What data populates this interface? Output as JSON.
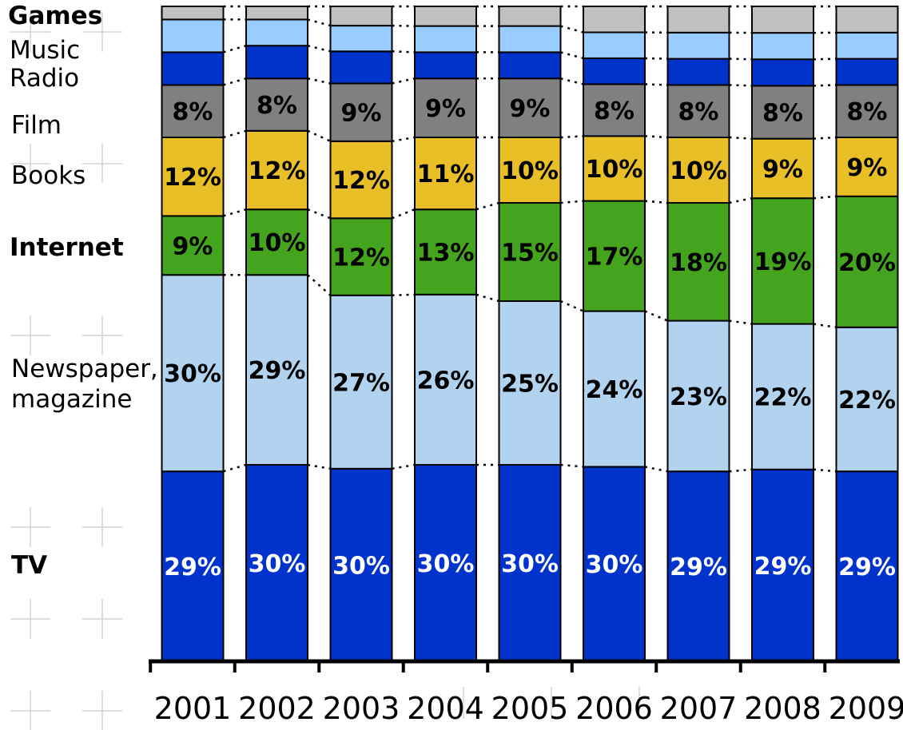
{
  "chart_data": {
    "type": "bar",
    "stacked": true,
    "categories": [
      "2001",
      "2002",
      "2003",
      "2004",
      "2005",
      "2006",
      "2007",
      "2008",
      "2009"
    ],
    "ylim": [
      0,
      100
    ],
    "grid": false,
    "legend": "left",
    "series": [
      {
        "name": "TV",
        "bold": true,
        "color": "#0033cc",
        "label_color": "#ffffff",
        "shown": true,
        "values": [
          29,
          30,
          30,
          30,
          30,
          30,
          29,
          29,
          29
        ],
        "labels": [
          "29%",
          "30%",
          "30%",
          "30%",
          "30%",
          "30%",
          "29%",
          "29%",
          "29%"
        ]
      },
      {
        "name": "Newspaper, magazine",
        "bold": false,
        "color": "#b1d3ef",
        "label_color": "#000000",
        "shown": true,
        "values": [
          30,
          29,
          27,
          26,
          25,
          24,
          23,
          22,
          22
        ],
        "labels": [
          "30%",
          "29%",
          "27%",
          "26%",
          "25%",
          "24%",
          "23%",
          "22%",
          "22%"
        ]
      },
      {
        "name": "Internet",
        "bold": true,
        "color": "#44a41e",
        "label_color": "#000000",
        "shown": true,
        "values": [
          9,
          10,
          12,
          13,
          15,
          17,
          18,
          19,
          20
        ],
        "labels": [
          "9%",
          "10%",
          "12%",
          "13%",
          "15%",
          "17%",
          "18%",
          "19%",
          "20%"
        ]
      },
      {
        "name": "Books",
        "bold": false,
        "color": "#e8bf26",
        "label_color": "#000000",
        "shown": true,
        "values": [
          12,
          12,
          12,
          11,
          10,
          10,
          10,
          9,
          9
        ],
        "labels": [
          "12%",
          "12%",
          "12%",
          "11%",
          "10%",
          "10%",
          "10%",
          "9%",
          "9%"
        ]
      },
      {
        "name": "Film",
        "bold": false,
        "color": "#808080",
        "label_color": "#000000",
        "shown": true,
        "values": [
          8,
          8,
          9,
          9,
          9,
          8,
          8,
          8,
          8
        ],
        "labels": [
          "8%",
          "8%",
          "9%",
          "9%",
          "9%",
          "8%",
          "8%",
          "8%",
          "8%"
        ]
      },
      {
        "name": "Radio",
        "bold": false,
        "color": "#0033cc",
        "label_color": "#ffffff",
        "shown": false,
        "values": [
          5,
          5,
          5,
          4,
          4,
          4,
          4,
          4,
          4
        ],
        "labels": []
      },
      {
        "name": "Music",
        "bold": false,
        "color": "#99ccff",
        "label_color": "#000000",
        "shown": false,
        "values": [
          5,
          4,
          4,
          4,
          4,
          4,
          4,
          4,
          4
        ],
        "labels": []
      },
      {
        "name": "Games",
        "bold": true,
        "color": "#c0c0c0",
        "label_color": "#000000",
        "shown": false,
        "values": [
          2,
          2,
          3,
          3,
          3,
          4,
          4,
          4,
          4
        ],
        "labels": []
      }
    ]
  }
}
